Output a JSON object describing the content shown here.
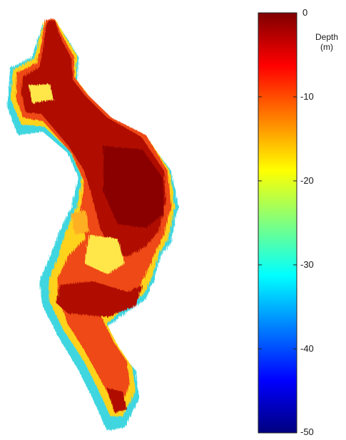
{
  "chart_data": {
    "type": "heatmap",
    "colorbar": {
      "title_line1": "Depth",
      "title_line2": "(m)",
      "range": [
        -50,
        0
      ],
      "ticks": [
        0,
        -10,
        -20,
        -30,
        -40,
        -50
      ],
      "tick_labels": [
        "0",
        "-10",
        "-20",
        "-30",
        "-40",
        "-50"
      ],
      "colormap": "jet",
      "colors": [
        "#00007f",
        "#0000ff",
        "#007fff",
        "#00ffff",
        "#7fff7f",
        "#ffff00",
        "#ff7f00",
        "#ff0000",
        "#7f0000"
      ]
    },
    "surface": {
      "description_visible": false,
      "dominant_depth_range": [
        -20,
        0
      ],
      "edge_depth_range": [
        -50,
        -25
      ]
    }
  }
}
